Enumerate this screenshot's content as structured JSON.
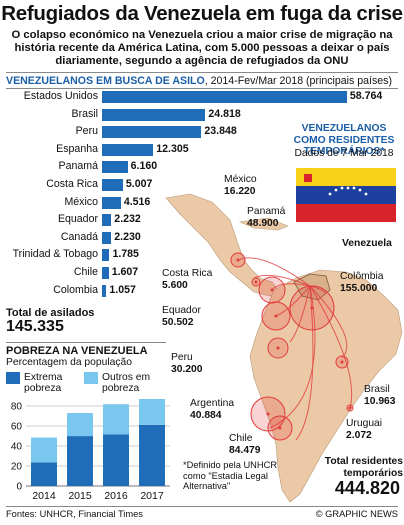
{
  "title": "Refugiados da Venezuela em fuga da crise",
  "subtitle": "O colapso económico na Venezuela criou a maior crise de migração na história recente da América Latina, com 5.000 pessoas a deixar o país diariamente, segundo a agência de refugiados da ONU",
  "asylum": {
    "header_bold": "VENEZUELANOS EM BUSCA DE ASILO",
    "header_rest": ", 2014-Fev/Mar 2018 (principais países)",
    "total_label": "Total de asilados",
    "total_value": "145.335"
  },
  "residents": {
    "title": "VENEZUELANOS COMO RESIDENTES TEMPORÁRIOS*",
    "date": "Dados de 7 Mar 2018",
    "total_label": "Total residentes temporários",
    "total_value": "444.820",
    "note": "*Definido pela UNHCR como \"Estadia Legal Alternativa\"",
    "countries": [
      {
        "name": "México",
        "value": "16.220"
      },
      {
        "name": "Panamá",
        "value": "48.900"
      },
      {
        "name": "Venezuela",
        "value": ""
      },
      {
        "name": "Colômbia",
        "value": "155.000"
      },
      {
        "name": "Costa Rica",
        "value": "5.600"
      },
      {
        "name": "Equador",
        "value": "50.502"
      },
      {
        "name": "Peru",
        "value": "30.200"
      },
      {
        "name": "Brasil",
        "value": "10.963"
      },
      {
        "name": "Argentina",
        "value": "40.884"
      },
      {
        "name": "Uruguai",
        "value": "2.072"
      },
      {
        "name": "Chile",
        "value": "84.479"
      }
    ]
  },
  "poverty": {
    "title": "POBREZA NA VENEZUELA",
    "subtitle": "Percentagem da população",
    "legend": [
      {
        "label": "Extrema pobreza",
        "color": "#1f6cb8"
      },
      {
        "label": "Outros em pobreza",
        "color": "#79c6ee"
      }
    ]
  },
  "footer": {
    "sources": "Fontes: UNHCR, Financial Times",
    "credit": "© GRAPHIC NEWS"
  },
  "colors": {
    "bar": "#1f6cb8",
    "accent": "#1a5ea8",
    "land": "#ecc9a6",
    "sea": "#ffffff",
    "bubble": "#e23b3b"
  },
  "chart_data": [
    {
      "type": "bar",
      "orientation": "horizontal",
      "title": "VENEZUELANOS EM BUSCA DE ASILO, 2014-Fev/Mar 2018 (principais países)",
      "categories": [
        "Estados Unidos",
        "Brasil",
        "Peru",
        "Espanha",
        "Panamá",
        "Costa Rica",
        "México",
        "Equador",
        "Canadá",
        "Trinidad & Tobago",
        "Chile",
        "Colombia"
      ],
      "values": [
        58764,
        24818,
        23848,
        12305,
        6160,
        5007,
        4516,
        2232,
        2230,
        1785,
        1607,
        1057
      ],
      "value_labels": [
        "58.764",
        "24.818",
        "23.848",
        "12.305",
        "6.160",
        "5.007",
        "4.516",
        "2.232",
        "2.230",
        "1.785",
        "1.607",
        "1.057"
      ],
      "xlim": [
        0,
        60000
      ]
    },
    {
      "type": "bar",
      "stacked": true,
      "title": "POBREZA NA VENEZUELA",
      "ylabel": "Percentagem da população",
      "categories": [
        "2014",
        "2015",
        "2016",
        "2017"
      ],
      "series": [
        {
          "name": "Extrema pobreza",
          "values": [
            23.6,
            49.9,
            51.5,
            61.2
          ]
        },
        {
          "name": "Outros em pobreza",
          "values": [
            24.8,
            23.1,
            30.3,
            25.8
          ]
        }
      ],
      "ylim": [
        0,
        80
      ],
      "yticks": [
        0,
        20,
        40,
        60,
        80
      ],
      "grid": true
    }
  ]
}
